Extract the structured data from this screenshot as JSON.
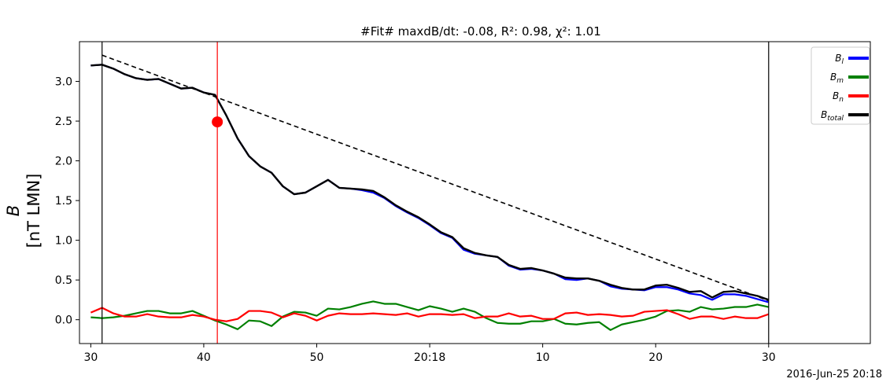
{
  "chart_data": {
    "type": "line",
    "title": "#Fit# maxdB/dt: -0.08, R²: 0.98, χ²: 1.01",
    "ylabel_symbol": "B",
    "ylabel_unit": "[nT LMN]",
    "xlabel": "",
    "date_label": "2016-Jun-25 20:18",
    "xlim": [
      -1,
      69
    ],
    "ylim": [
      -0.3,
      3.5
    ],
    "x_units": "seconds after 20:17:30",
    "x_ticks": [
      {
        "x": 0,
        "label": "30"
      },
      {
        "x": 10,
        "label": "40"
      },
      {
        "x": 20,
        "label": "50"
      },
      {
        "x": 30,
        "label": "20:18"
      },
      {
        "x": 40,
        "label": "10"
      },
      {
        "x": 50,
        "label": "20"
      },
      {
        "x": 60,
        "label": "30"
      }
    ],
    "y_ticks": [
      0.0,
      0.5,
      1.0,
      1.5,
      2.0,
      2.5,
      3.0
    ],
    "y_tick_labels": [
      "0.0",
      "0.5",
      "1.0",
      "1.5",
      "2.0",
      "2.5",
      "3.0"
    ],
    "vertical_lines": [
      {
        "x": 1,
        "color": "#000000"
      },
      {
        "x": 11.2,
        "color": "#ff0000"
      },
      {
        "x": 60,
        "color": "#000000"
      }
    ],
    "marker": {
      "x": 11.2,
      "y": 2.49,
      "color": "#ff0000"
    },
    "fit_line": {
      "x": [
        1,
        60
      ],
      "y": [
        3.33,
        0.24
      ],
      "color": "#000000",
      "style": "dashed"
    },
    "x": [
      0,
      1,
      2,
      3,
      4,
      5,
      6,
      7,
      8,
      9,
      10,
      11,
      12,
      13,
      14,
      15,
      16,
      17,
      18,
      19,
      20,
      21,
      22,
      23,
      24,
      25,
      26,
      27,
      28,
      29,
      30,
      31,
      32,
      33,
      34,
      35,
      36,
      37,
      38,
      39,
      40,
      41,
      42,
      43,
      44,
      45,
      46,
      47,
      48,
      49,
      50,
      51,
      52,
      53,
      54,
      55,
      56,
      57,
      58,
      59,
      60
    ],
    "series": [
      {
        "name": "B_l",
        "legend_main": "B",
        "legend_sub": "l",
        "color": "#0000ff",
        "values": [
          3.2,
          3.21,
          3.16,
          3.09,
          3.04,
          3.02,
          3.03,
          2.97,
          2.91,
          2.92,
          2.86,
          2.83,
          2.57,
          2.28,
          2.06,
          1.93,
          1.85,
          1.68,
          1.58,
          1.6,
          1.68,
          1.76,
          1.66,
          1.65,
          1.63,
          1.6,
          1.53,
          1.43,
          1.35,
          1.28,
          1.19,
          1.09,
          1.03,
          0.88,
          0.83,
          0.81,
          0.79,
          0.68,
          0.63,
          0.64,
          0.62,
          0.58,
          0.51,
          0.5,
          0.52,
          0.49,
          0.42,
          0.39,
          0.38,
          0.37,
          0.41,
          0.41,
          0.38,
          0.33,
          0.31,
          0.25,
          0.32,
          0.32,
          0.3,
          0.26,
          0.22
        ]
      },
      {
        "name": "B_m",
        "legend_main": "B",
        "legend_sub": "m",
        "color": "#008000",
        "values": [
          0.03,
          0.02,
          0.03,
          0.05,
          0.08,
          0.11,
          0.11,
          0.08,
          0.08,
          0.11,
          0.05,
          -0.01,
          -0.06,
          -0.12,
          -0.01,
          -0.02,
          -0.08,
          0.04,
          0.1,
          0.09,
          0.05,
          0.14,
          0.13,
          0.16,
          0.2,
          0.23,
          0.2,
          0.2,
          0.16,
          0.12,
          0.17,
          0.14,
          0.1,
          0.14,
          0.1,
          0.02,
          -0.04,
          -0.05,
          -0.05,
          -0.02,
          -0.02,
          0.01,
          -0.05,
          -0.06,
          -0.04,
          -0.03,
          -0.13,
          -0.06,
          -0.03,
          0.0,
          0.04,
          0.11,
          0.12,
          0.1,
          0.16,
          0.13,
          0.14,
          0.16,
          0.16,
          0.19,
          0.16
        ]
      },
      {
        "name": "B_n",
        "legend_main": "B",
        "legend_sub": "n",
        "color": "#ff0000",
        "values": [
          0.09,
          0.15,
          0.08,
          0.04,
          0.04,
          0.07,
          0.04,
          0.03,
          0.03,
          0.06,
          0.04,
          0.0,
          -0.02,
          0.01,
          0.11,
          0.11,
          0.09,
          0.03,
          0.08,
          0.05,
          -0.01,
          0.05,
          0.08,
          0.07,
          0.07,
          0.08,
          0.07,
          0.06,
          0.08,
          0.04,
          0.07,
          0.07,
          0.06,
          0.07,
          0.02,
          0.04,
          0.04,
          0.08,
          0.04,
          0.05,
          0.01,
          0.01,
          0.08,
          0.09,
          0.06,
          0.07,
          0.06,
          0.04,
          0.05,
          0.1,
          0.11,
          0.12,
          0.07,
          0.01,
          0.04,
          0.04,
          0.01,
          0.04,
          0.02,
          0.02,
          0.07
        ]
      },
      {
        "name": "B_total",
        "legend_main": "B",
        "legend_sub": "total",
        "color": "#000000",
        "values": [
          3.2,
          3.21,
          3.16,
          3.09,
          3.04,
          3.02,
          3.03,
          2.97,
          2.91,
          2.92,
          2.86,
          2.83,
          2.57,
          2.28,
          2.06,
          1.93,
          1.85,
          1.68,
          1.58,
          1.6,
          1.68,
          1.76,
          1.66,
          1.65,
          1.64,
          1.62,
          1.54,
          1.44,
          1.36,
          1.29,
          1.2,
          1.1,
          1.04,
          0.9,
          0.84,
          0.81,
          0.79,
          0.69,
          0.64,
          0.65,
          0.62,
          0.58,
          0.53,
          0.52,
          0.52,
          0.49,
          0.44,
          0.4,
          0.38,
          0.38,
          0.43,
          0.44,
          0.4,
          0.35,
          0.36,
          0.28,
          0.35,
          0.36,
          0.33,
          0.3,
          0.25
        ]
      }
    ],
    "legend_position": "top-right"
  }
}
